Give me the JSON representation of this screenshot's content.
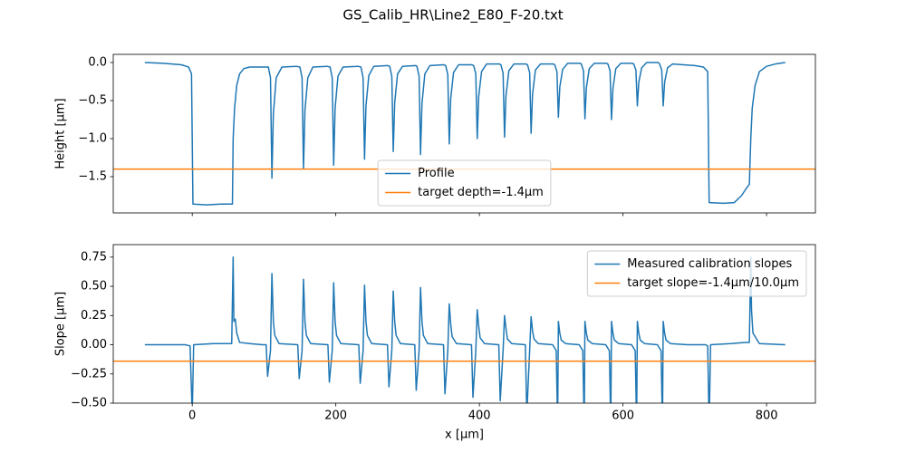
{
  "title": "GS_Calib_HR\\Line2_E80_F-20.txt",
  "chart_data": [
    {
      "type": "line",
      "ylabel": "Height [μm]",
      "xlim": [
        -110,
        868
      ],
      "xticks": [
        0,
        200,
        400,
        600,
        800
      ],
      "xticklabels": false,
      "ylim": [
        -1.976,
        0.107
      ],
      "yticks": [
        {
          "value": 0,
          "label": "0.0"
        },
        {
          "value": -0.5,
          "label": "−0.5"
        },
        {
          "value": -1.0,
          "label": "−1.0"
        },
        {
          "value": -1.5,
          "label": "−1.5"
        }
      ],
      "legend": "lower center",
      "series": [
        {
          "name": "Profile",
          "color": "#1f77b4",
          "x": [
            -66,
            -40,
            -15,
            -5,
            -1,
            1,
            20,
            40,
            56,
            57,
            59,
            62,
            66,
            72,
            80,
            106,
            109,
            111,
            113,
            117,
            125,
            145,
            150,
            153,
            155,
            157,
            161,
            168,
            188,
            192,
            195,
            197,
            199,
            203,
            210,
            231,
            235,
            238,
            240,
            242,
            246,
            253,
            272,
            275,
            278,
            280,
            282,
            286,
            293,
            311,
            313,
            316,
            318,
            320,
            324,
            331,
            350,
            353,
            356,
            358,
            360,
            364,
            371,
            389,
            392,
            395,
            397,
            399,
            403,
            410,
            428,
            430,
            433,
            435,
            437,
            441,
            448,
            465,
            467,
            470,
            472,
            474,
            478,
            485,
            503,
            505,
            508,
            510,
            512,
            516,
            523,
            540,
            542,
            545,
            547,
            549,
            553,
            560,
            577,
            579,
            582,
            584,
            586,
            590,
            597,
            613,
            615,
            618,
            620,
            622,
            626,
            633,
            649,
            651,
            654,
            656,
            658,
            662,
            669,
            700,
            712,
            718,
            720,
            740,
            755,
            765,
            772,
            776,
            778,
            780,
            784,
            790,
            800,
            812,
            826
          ],
          "values": [
            0.0,
            -0.01,
            -0.03,
            -0.06,
            -0.15,
            -1.86,
            -1.87,
            -1.86,
            -1.86,
            -1.0,
            -0.6,
            -0.3,
            -0.15,
            -0.08,
            -0.06,
            -0.06,
            -0.2,
            -1.52,
            -0.68,
            -0.2,
            -0.06,
            -0.05,
            -0.06,
            -0.2,
            -1.4,
            -0.63,
            -0.2,
            -0.06,
            -0.05,
            -0.06,
            -0.2,
            -1.35,
            -0.6,
            -0.18,
            -0.06,
            -0.05,
            -0.06,
            -0.2,
            -1.27,
            -0.57,
            -0.17,
            -0.05,
            -0.04,
            -0.05,
            -0.18,
            -1.17,
            -0.53,
            -0.15,
            -0.05,
            -0.04,
            -0.05,
            -0.18,
            -1.21,
            -0.54,
            -0.15,
            -0.04,
            -0.03,
            -0.04,
            -0.16,
            -1.07,
            -0.48,
            -0.13,
            -0.03,
            -0.03,
            -0.04,
            -0.15,
            -1.0,
            -0.45,
            -0.12,
            -0.02,
            -0.02,
            -0.03,
            -0.14,
            -0.98,
            -0.44,
            -0.11,
            -0.02,
            -0.02,
            -0.03,
            -0.13,
            -0.93,
            -0.42,
            -0.1,
            -0.02,
            -0.02,
            -0.03,
            -0.12,
            -0.72,
            -0.32,
            -0.09,
            -0.01,
            -0.01,
            -0.02,
            -0.11,
            -0.74,
            -0.33,
            -0.08,
            -0.01,
            -0.01,
            -0.02,
            -0.11,
            -0.75,
            -0.34,
            -0.08,
            -0.01,
            -0.01,
            -0.02,
            -0.1,
            -0.57,
            -0.26,
            -0.07,
            0.0,
            0.0,
            -0.02,
            -0.1,
            -0.57,
            -0.26,
            -0.07,
            -0.02,
            -0.04,
            -0.06,
            -0.12,
            -1.84,
            -1.85,
            -1.84,
            -1.75,
            -1.65,
            -1.6,
            -1.0,
            -0.6,
            -0.3,
            -0.12,
            -0.05,
            -0.02,
            0.0
          ]
        },
        {
          "name": "target depth=-1.4μm",
          "color": "#ff7f0e",
          "hline": -1.4
        }
      ]
    },
    {
      "type": "line",
      "ylabel": "Slope [μm]",
      "xlabel": "x [μm]",
      "xlim": [
        -110,
        868
      ],
      "xticks": [
        0,
        200,
        400,
        600,
        800
      ],
      "ylim": [
        -0.5,
        0.857
      ],
      "yticks": [
        {
          "value": 0.75,
          "label": "0.75"
        },
        {
          "value": 0.5,
          "label": "0.50"
        },
        {
          "value": 0.25,
          "label": "0.25"
        },
        {
          "value": 0,
          "label": "0.00"
        },
        {
          "value": -0.25,
          "label": "−0.25"
        },
        {
          "value": -0.5,
          "label": "−0.50"
        }
      ],
      "legend": "upper right",
      "series": [
        {
          "name": "Measured calibration slopes",
          "color": "#1f77b4",
          "x": [
            -66,
            -10,
            -3,
            0,
            2,
            30,
            55,
            57,
            58,
            60,
            62,
            66,
            80,
            98,
            103,
            105,
            109,
            111,
            113,
            115,
            121,
            147,
            149,
            153,
            155,
            157,
            159,
            165,
            189,
            191,
            195,
            197,
            199,
            201,
            207,
            232,
            234,
            238,
            240,
            242,
            244,
            250,
            272,
            274,
            278,
            280,
            282,
            284,
            290,
            310,
            312,
            316,
            318,
            320,
            322,
            328,
            350,
            352,
            356,
            358,
            360,
            362,
            368,
            389,
            391,
            395,
            397,
            399,
            401,
            407,
            427,
            429,
            433,
            435,
            437,
            439,
            445,
            464,
            466,
            470,
            472,
            474,
            476,
            482,
            502,
            507,
            509,
            510,
            512,
            514,
            520,
            539,
            544,
            546,
            547,
            549,
            551,
            557,
            576,
            581,
            583,
            584,
            586,
            588,
            594,
            612,
            617,
            619,
            620,
            622,
            624,
            630,
            648,
            653,
            655,
            656,
            658,
            660,
            666,
            690,
            715,
            718,
            720,
            722,
            750,
            770,
            776,
            778,
            779,
            781,
            790,
            826
          ],
          "values": [
            0,
            0,
            -0.01,
            -0.6,
            0,
            0.01,
            0.01,
            0.75,
            0.2,
            0.22,
            0.1,
            0.02,
            0.01,
            0.0,
            0.0,
            -0.27,
            -0.05,
            0.61,
            0.2,
            0.08,
            0.01,
            0.0,
            -0.29,
            -0.05,
            0.56,
            0.2,
            0.08,
            0.01,
            0.0,
            -0.32,
            -0.05,
            0.53,
            0.2,
            0.08,
            0.01,
            0.0,
            -0.33,
            -0.05,
            0.51,
            0.2,
            0.08,
            0.01,
            0.0,
            -0.36,
            -0.05,
            0.46,
            0.2,
            0.08,
            0.01,
            0.0,
            -0.39,
            -0.05,
            0.49,
            0.2,
            0.08,
            0.01,
            0.0,
            -0.42,
            -0.05,
            0.35,
            0.18,
            0.07,
            0.01,
            0.0,
            -0.45,
            -0.05,
            0.3,
            0.16,
            0.06,
            0.01,
            0.0,
            -0.48,
            -0.05,
            0.25,
            0.14,
            0.05,
            0.01,
            0.0,
            -0.6,
            -0.05,
            0.24,
            0.12,
            0.05,
            0.01,
            0.0,
            -0.05,
            -0.7,
            0.2,
            0.1,
            0.04,
            0.01,
            0.0,
            -0.05,
            -0.7,
            0.2,
            0.1,
            0.04,
            0.01,
            0.0,
            -0.05,
            -0.7,
            0.2,
            0.1,
            0.04,
            0.01,
            0.0,
            -0.05,
            -0.7,
            0.2,
            0.1,
            0.04,
            0.01,
            0.0,
            -0.05,
            -0.7,
            0.2,
            0.1,
            0.04,
            0.01,
            0.0,
            0.0,
            -0.01,
            -0.7,
            0.0,
            0.01,
            0.02,
            0.02,
            0.75,
            0.3,
            0.1,
            0.01,
            0.0
          ]
        },
        {
          "name": "target slope=-1.4μm/10.0μm",
          "color": "#ff7f0e",
          "hline": -0.14
        }
      ]
    }
  ]
}
